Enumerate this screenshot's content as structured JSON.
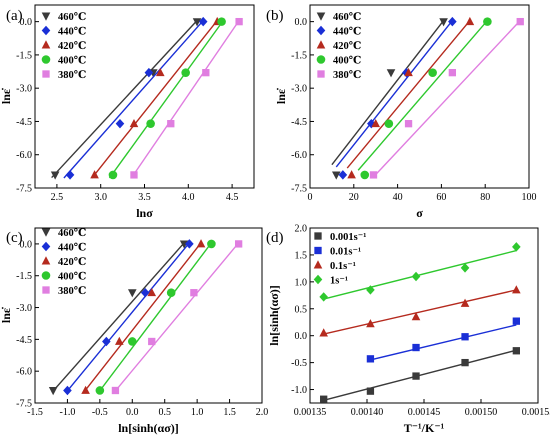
{
  "colors": {
    "460": "#3a3a3a",
    "440": "#1a2fd6",
    "420": "#b52a1e",
    "400": "#2ec82e",
    "380": "#e07ee0"
  },
  "chart_data": [
    {
      "panel_label": "(a)",
      "type": "scatter",
      "xlabel": "lnσ",
      "ylabel": "lnε̇",
      "xlim": [
        2.25,
        4.75
      ],
      "ylim": [
        -7.5,
        0.75
      ],
      "xticks": [
        "2.5",
        "3.0",
        "3.5",
        "4.0",
        "4.5"
      ],
      "yticks": [
        "0.0",
        "-1.5",
        "-3.0",
        "-4.5",
        "-6.0",
        "-7.5"
      ],
      "legend_position": "top-left",
      "series": [
        {
          "name": "460℃",
          "marker": "tri-down",
          "color": "460",
          "x": [
            2.48,
            3.6,
            4.1
          ],
          "y": [
            -6.91,
            -2.3,
            0.0
          ],
          "fit": [
            [
              2.44,
              -7.03
            ],
            [
              4.1,
              0.05
            ]
          ]
        },
        {
          "name": "440℃",
          "marker": "diamond",
          "color": "440",
          "x": [
            2.65,
            3.22,
            3.55,
            4.17
          ],
          "y": [
            -6.91,
            -4.6,
            -2.3,
            0.0
          ],
          "fit": [
            [
              2.58,
              -7.05
            ],
            [
              4.17,
              0.05
            ]
          ]
        },
        {
          "name": "420℃",
          "marker": "tri-up",
          "color": "420",
          "x": [
            2.93,
            3.38,
            3.68,
            4.33
          ],
          "y": [
            -6.91,
            -4.6,
            -2.3,
            0.0
          ],
          "fit": [
            [
              2.9,
              -7.05
            ],
            [
              4.33,
              0.05
            ]
          ]
        },
        {
          "name": "400℃",
          "marker": "circle",
          "color": "400",
          "x": [
            3.14,
            3.57,
            3.97,
            4.38
          ],
          "y": [
            -6.91,
            -4.6,
            -2.3,
            0.0
          ],
          "fit": [
            [
              3.1,
              -7.05
            ],
            [
              4.4,
              0.05
            ]
          ]
        },
        {
          "name": "380℃",
          "marker": "square",
          "color": "380",
          "x": [
            3.38,
            3.8,
            4.2,
            4.58
          ],
          "y": [
            -6.91,
            -4.6,
            -2.3,
            0.0
          ],
          "fit": [
            [
              3.35,
              -7.05
            ],
            [
              4.58,
              0.05
            ]
          ]
        }
      ]
    },
    {
      "panel_label": "(b)",
      "type": "scatter",
      "xlabel": "σ",
      "ylabel": "lnε̇",
      "xlim": [
        0,
        100
      ],
      "ylim": [
        -7.5,
        0.75
      ],
      "xticks": [
        "0",
        "20",
        "40",
        "60",
        "80",
        "100"
      ],
      "yticks": [
        "0.0",
        "-1.5",
        "-3.0",
        "-4.5",
        "-6.0",
        "-7.5"
      ],
      "legend_position": "top-left",
      "series": [
        {
          "name": "460℃",
          "marker": "tri-down",
          "color": "460",
          "x": [
            12,
            37,
            61
          ],
          "y": [
            -6.91,
            -2.3,
            0.0
          ],
          "fit": [
            [
              10,
              -6.45
            ],
            [
              61,
              0.05
            ]
          ]
        },
        {
          "name": "440℃",
          "marker": "diamond",
          "color": "440",
          "x": [
            15,
            28,
            44,
            65
          ],
          "y": [
            -6.91,
            -4.6,
            -2.3,
            0.0
          ],
          "fit": [
            [
              12,
              -6.55
            ],
            [
              65,
              0.05
            ]
          ]
        },
        {
          "name": "420℃",
          "marker": "tri-up",
          "color": "420",
          "x": [
            19,
            30,
            45,
            73
          ],
          "y": [
            -6.91,
            -4.6,
            -2.3,
            0.0
          ],
          "fit": [
            [
              17,
              -6.6
            ],
            [
              73,
              0.05
            ]
          ]
        },
        {
          "name": "400℃",
          "marker": "circle",
          "color": "400",
          "x": [
            25,
            36,
            56,
            81
          ],
          "y": [
            -6.91,
            -4.6,
            -2.3,
            0.0
          ],
          "fit": [
            [
              22,
              -6.7
            ],
            [
              81,
              0.05
            ]
          ]
        },
        {
          "name": "380℃",
          "marker": "square",
          "color": "380",
          "x": [
            29,
            45,
            65,
            96
          ],
          "y": [
            -6.91,
            -4.6,
            -2.3,
            0.0
          ],
          "fit": [
            [
              29,
              -7.0
            ],
            [
              96,
              0.05
            ]
          ]
        }
      ]
    },
    {
      "panel_label": "(c)",
      "type": "scatter",
      "xlabel": "ln[sinh(ασ)]",
      "ylabel": "lnε̇",
      "xlim": [
        -1.5,
        2.0
      ],
      "ylim": [
        -7.5,
        0.75
      ],
      "xticks": [
        "-1.5",
        "-1.0",
        "-0.5",
        "0.0",
        "0.5",
        "1.0",
        "1.5",
        "2.0"
      ],
      "yticks": [
        "0.0",
        "-1.5",
        "-3.0",
        "-4.5",
        "-6.0",
        "-7.5"
      ],
      "legend_position": "top-left",
      "series": [
        {
          "name": "460℃",
          "marker": "tri-down",
          "color": "460",
          "x": [
            -1.22,
            0.0,
            0.8
          ],
          "y": [
            -6.91,
            -2.3,
            0.0
          ],
          "fit": [
            [
              -1.24,
              -7.0
            ],
            [
              0.8,
              0.05
            ]
          ]
        },
        {
          "name": "440℃",
          "marker": "diamond",
          "color": "440",
          "x": [
            -1.0,
            -0.4,
            0.2,
            0.88
          ],
          "y": [
            -6.91,
            -4.6,
            -2.3,
            0.0
          ],
          "fit": [
            [
              -1.02,
              -7.0
            ],
            [
              0.88,
              0.05
            ]
          ]
        },
        {
          "name": "420℃",
          "marker": "tri-up",
          "color": "420",
          "x": [
            -0.72,
            -0.2,
            0.3,
            1.06
          ],
          "y": [
            -6.91,
            -4.6,
            -2.3,
            0.0
          ],
          "fit": [
            [
              -0.75,
              -7.0
            ],
            [
              1.06,
              0.05
            ]
          ]
        },
        {
          "name": "400℃",
          "marker": "circle",
          "color": "400",
          "x": [
            -0.5,
            0.0,
            0.6,
            1.22
          ],
          "y": [
            -6.91,
            -4.6,
            -2.3,
            0.0
          ],
          "fit": [
            [
              -0.52,
              -7.0
            ],
            [
              1.22,
              0.05
            ]
          ]
        },
        {
          "name": "380℃",
          "marker": "square",
          "color": "380",
          "x": [
            -0.26,
            0.3,
            0.95,
            1.64
          ],
          "y": [
            -6.91,
            -4.6,
            -2.3,
            0.0
          ],
          "fit": [
            [
              -0.28,
              -7.0
            ],
            [
              1.64,
              0.05
            ]
          ]
        }
      ]
    },
    {
      "panel_label": "(d)",
      "type": "scatter",
      "xlabel": "T⁻¹/K⁻¹",
      "ylabel": "ln[sinh(ασ)]",
      "xlim": [
        0.00135,
        0.00155
      ],
      "ylim": [
        -1.25,
        2.0
      ],
      "xticks": [
        "0.00135",
        "0.00140",
        "0.00145",
        "0.00150",
        "0.00155"
      ],
      "yticks": [
        "-1.0",
        "-0.5",
        "0.0",
        "0.5",
        "1.0",
        "1.5",
        "2.0"
      ],
      "legend_position": "top-left",
      "series": [
        {
          "name": "0.001s⁻¹",
          "marker": "square",
          "color": "460",
          "x": [
            0.001362,
            0.001403,
            0.001443,
            0.001486,
            0.001531
          ],
          "y": [
            -1.18,
            -1.03,
            -0.75,
            -0.5,
            -0.28
          ],
          "fit": [
            [
              0.001362,
              -1.2
            ],
            [
              0.001531,
              -0.27
            ]
          ]
        },
        {
          "name": "0.01s⁻¹",
          "marker": "square",
          "color": "440",
          "x": [
            0.001403,
            0.001443,
            0.001486,
            0.001531
          ],
          "y": [
            -0.43,
            -0.22,
            -0.02,
            0.27
          ],
          "fit": [
            [
              0.001403,
              -0.45
            ],
            [
              0.001531,
              0.2
            ]
          ]
        },
        {
          "name": "0.1s⁻¹",
          "marker": "tri-up",
          "color": "420",
          "x": [
            0.001362,
            0.001403,
            0.001443,
            0.001486,
            0.001531
          ],
          "y": [
            0.05,
            0.22,
            0.35,
            0.6,
            0.85
          ],
          "fit": [
            [
              0.001362,
              0.03
            ],
            [
              0.001531,
              0.85
            ]
          ]
        },
        {
          "name": "1s⁻¹",
          "marker": "diamond",
          "color": "400",
          "x": [
            0.001362,
            0.001403,
            0.001443,
            0.001486,
            0.001531
          ],
          "y": [
            0.72,
            0.85,
            1.1,
            1.26,
            1.65
          ],
          "fit": [
            [
              0.001362,
              0.68
            ],
            [
              0.001531,
              1.58
            ]
          ]
        }
      ]
    }
  ]
}
